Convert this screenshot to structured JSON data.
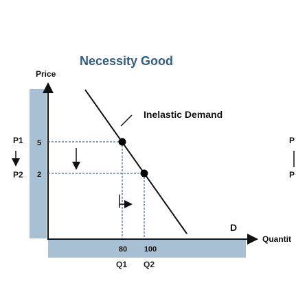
{
  "chart_data": {
    "type": "line",
    "title": "Necessity Good",
    "ylabel": "Price",
    "xlabel": "Quantity",
    "xlabel_visible": "Quantit",
    "curve_label": "D",
    "annotation": "Inelastic Demand",
    "price_levels": [
      {
        "tick": "5",
        "label": "P1"
      },
      {
        "tick": "2",
        "label": "P2"
      }
    ],
    "quantity_levels": [
      {
        "tick": "80",
        "label": "Q1"
      },
      {
        "tick": "100",
        "label": "Q2"
      }
    ],
    "right_edge_labels": [
      "P",
      "P"
    ],
    "points": [
      {
        "x": 80,
        "y": 5
      },
      {
        "x": 100,
        "y": 2
      }
    ],
    "grid": false,
    "colors": {
      "title": "#2f5f88",
      "axis_band": "#a8c0d4",
      "line": "#111111"
    }
  }
}
